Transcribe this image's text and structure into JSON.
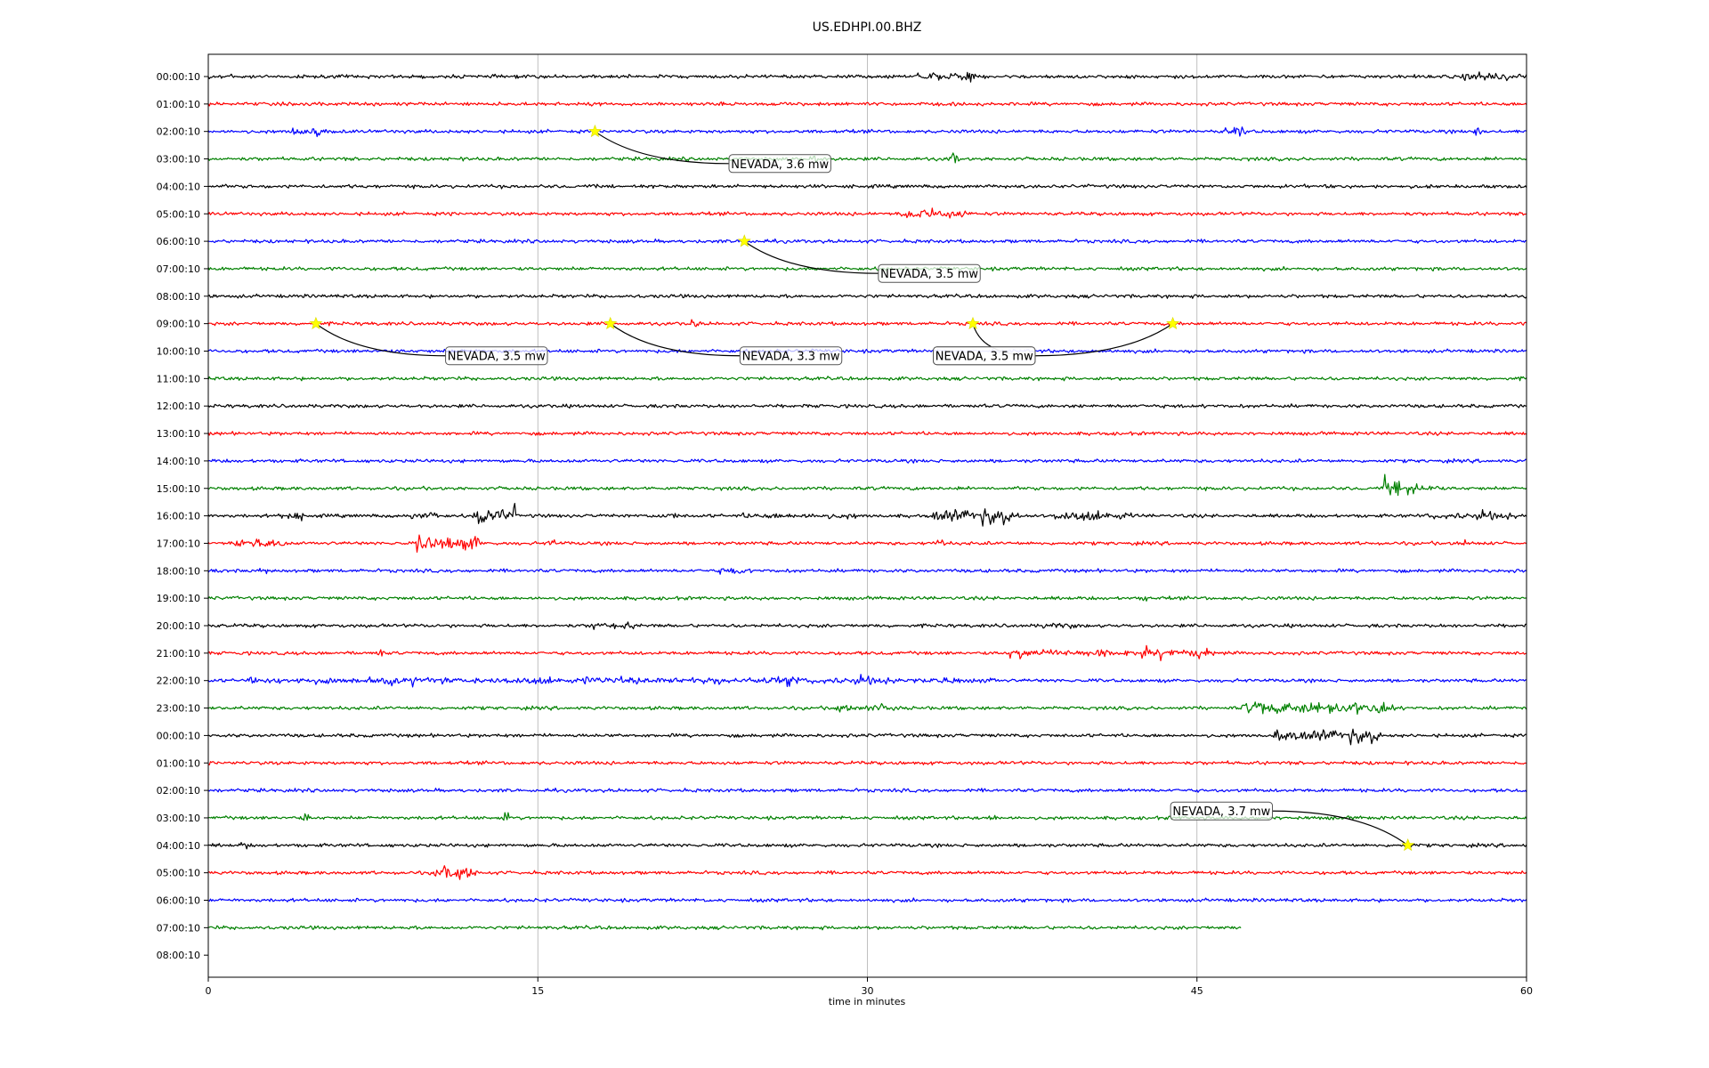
{
  "chart_data": {
    "type": "line",
    "title": "US.EDHPI.00.BHZ",
    "xlabel": "time in minutes",
    "ylabel": "",
    "xlim": [
      0,
      60
    ],
    "x_ticks": [
      "0",
      "15",
      "30",
      "45",
      "60"
    ],
    "x_tick_values": [
      0,
      15,
      30,
      45,
      60
    ],
    "vertical_grid": true,
    "row_labels": [
      "00:00:10",
      "01:00:10",
      "02:00:10",
      "03:00:10",
      "04:00:10",
      "05:00:10",
      "06:00:10",
      "07:00:10",
      "08:00:10",
      "09:00:10",
      "10:00:10",
      "11:00:10",
      "12:00:10",
      "13:00:10",
      "14:00:10",
      "15:00:10",
      "16:00:10",
      "17:00:10",
      "18:00:10",
      "19:00:10",
      "20:00:10",
      "21:00:10",
      "22:00:10",
      "23:00:10",
      "00:00:10",
      "01:00:10",
      "02:00:10",
      "03:00:10",
      "04:00:10",
      "05:00:10",
      "06:00:10",
      "07:00:10",
      "08:00:10"
    ],
    "trace_colors": [
      "#000000",
      "#ff0000",
      "#0000ff",
      "#008000"
    ],
    "trace_end_minutes": [
      60,
      60,
      60,
      60,
      60,
      60,
      60,
      60,
      60,
      60,
      60,
      60,
      60,
      60,
      60,
      60,
      60,
      60,
      60,
      60,
      60,
      60,
      60,
      60,
      60,
      60,
      60,
      60,
      60,
      60,
      60,
      47,
      0
    ],
    "bursts": [
      {
        "row": 0,
        "start": 32,
        "end": 35,
        "amp": 1.6
      },
      {
        "row": 0,
        "start": 57,
        "end": 60,
        "amp": 1.6
      },
      {
        "row": 0,
        "start": 0,
        "end": 1.5,
        "amp": 1.2
      },
      {
        "row": 2,
        "start": 3.8,
        "end": 5.5,
        "amp": 1.3
      },
      {
        "row": 2,
        "start": 46.2,
        "end": 47.2,
        "amp": 1.5
      },
      {
        "row": 2,
        "start": 57.5,
        "end": 58,
        "amp": 2.0
      },
      {
        "row": 3,
        "start": 27.5,
        "end": 28,
        "amp": 2.0
      },
      {
        "row": 3,
        "start": 33.7,
        "end": 34.2,
        "amp": 2.0
      },
      {
        "row": 5,
        "start": 31.5,
        "end": 34.5,
        "amp": 2.0
      },
      {
        "row": 9,
        "start": 22,
        "end": 22.4,
        "amp": 1.8
      },
      {
        "row": 15,
        "start": 53.4,
        "end": 54.2,
        "amp": 3.0
      },
      {
        "row": 15,
        "start": 54.5,
        "end": 56,
        "amp": 1.3
      },
      {
        "row": 16,
        "start": 3.3,
        "end": 4.3,
        "amp": 1.8
      },
      {
        "row": 16,
        "start": 9.2,
        "end": 10.5,
        "amp": 1.5
      },
      {
        "row": 16,
        "start": 12.1,
        "end": 14,
        "amp": 2.8
      },
      {
        "row": 16,
        "start": 20.5,
        "end": 21.5,
        "amp": 1.3
      },
      {
        "row": 16,
        "start": 24.3,
        "end": 29.5,
        "amp": 1.2
      },
      {
        "row": 16,
        "start": 33,
        "end": 37,
        "amp": 2.2
      },
      {
        "row": 16,
        "start": 38.5,
        "end": 42,
        "amp": 1.8
      },
      {
        "row": 16,
        "start": 55.4,
        "end": 59.5,
        "amp": 1.3
      },
      {
        "row": 17,
        "start": 1.2,
        "end": 3.5,
        "amp": 1.8
      },
      {
        "row": 17,
        "start": 9.5,
        "end": 12.5,
        "amp": 2.8
      },
      {
        "row": 17,
        "start": 15.5,
        "end": 15.8,
        "amp": 1.5
      },
      {
        "row": 17,
        "start": 33,
        "end": 33.6,
        "amp": 1.3
      },
      {
        "row": 17,
        "start": 56.8,
        "end": 57.2,
        "amp": 1.5
      },
      {
        "row": 18,
        "start": 2.3,
        "end": 2.8,
        "amp": 1.3
      },
      {
        "row": 18,
        "start": 23.3,
        "end": 24.7,
        "amp": 1.4
      },
      {
        "row": 19,
        "start": 42.5,
        "end": 43,
        "amp": 1.4
      },
      {
        "row": 20,
        "start": 17.4,
        "end": 19.4,
        "amp": 1.3
      },
      {
        "row": 20,
        "start": 37.8,
        "end": 39.5,
        "amp": 1.2
      },
      {
        "row": 21,
        "start": 7.5,
        "end": 7.9,
        "amp": 2.6
      },
      {
        "row": 21,
        "start": 36.5,
        "end": 45.8,
        "amp": 1.4
      },
      {
        "row": 22,
        "start": 1.5,
        "end": 36,
        "amp": 1.3
      },
      {
        "row": 23,
        "start": 28.5,
        "end": 31.5,
        "amp": 1.4
      },
      {
        "row": 23,
        "start": 47,
        "end": 54,
        "amp": 2.2
      },
      {
        "row": 24,
        "start": 48.2,
        "end": 53.5,
        "amp": 2.0
      },
      {
        "row": 27,
        "start": 4.3,
        "end": 4.6,
        "amp": 2.0
      },
      {
        "row": 27,
        "start": 13.4,
        "end": 13.7,
        "amp": 2.2
      },
      {
        "row": 27,
        "start": 35.5,
        "end": 36,
        "amp": 1.6
      },
      {
        "row": 28,
        "start": 1.5,
        "end": 1.8,
        "amp": 1.4
      },
      {
        "row": 29,
        "start": 10.3,
        "end": 12.3,
        "amp": 2.4
      }
    ],
    "events": [
      {
        "label": "NEVADA, 3.6 mw",
        "row": 2,
        "minute": 17.6,
        "box_row": 3.17,
        "box_minute": 23.7
      },
      {
        "label": "NEVADA, 3.5 mw",
        "row": 6,
        "minute": 24.4,
        "box_row": 7.17,
        "box_minute": 30.5
      },
      {
        "label": "NEVADA, 3.5 mw",
        "row": 9,
        "minute": 4.9,
        "box_row": 10.17,
        "box_minute": 10.8
      },
      {
        "label": "NEVADA, 3.3 mw",
        "row": 9,
        "minute": 18.3,
        "box_row": 10.17,
        "box_minute": 24.2
      },
      {
        "label": "NEVADA, 3.5 mw",
        "row": 9,
        "minute": 34.8,
        "box_row": 10.17,
        "box_minute": 33.0
      },
      {
        "label": "NEVADA, 3.5 mw",
        "row": 9,
        "minute": 43.9,
        "box_row": 10.17,
        "box_minute": 33.0
      },
      {
        "label": "NEVADA, 3.7 mw",
        "row": 28,
        "minute": 54.6,
        "box_row": 26.75,
        "box_minute": 43.8
      }
    ]
  }
}
